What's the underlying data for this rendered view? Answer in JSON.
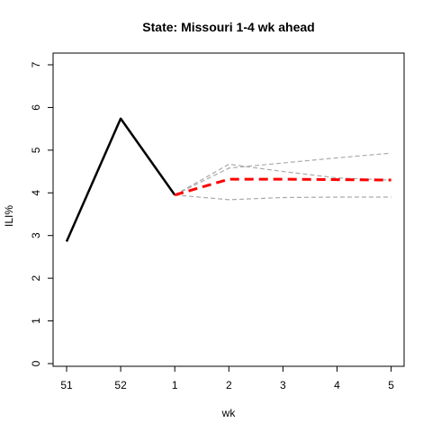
{
  "chart_data": {
    "type": "line",
    "title": "State: Missouri 1-4 wk ahead",
    "xlabel": "wk",
    "ylabel": "ILI%",
    "x_ticks": [
      "51",
      "52",
      "1",
      "2",
      "3",
      "4",
      "5"
    ],
    "y_ticks": [
      "0",
      "1",
      "2",
      "3",
      "4",
      "5",
      "6",
      "7"
    ],
    "ylim": [
      0,
      7
    ],
    "grid": false,
    "legend": "none",
    "series": [
      {
        "role": "observed",
        "color": "#000000",
        "style": "solid",
        "x": [
          "51",
          "52",
          "1"
        ],
        "values": [
          2.86,
          5.74,
          3.95
        ]
      },
      {
        "role": "forecast",
        "color": "#ff0000",
        "style": "dashed",
        "x": [
          "1",
          "2",
          "3",
          "4",
          "5"
        ],
        "values": [
          3.95,
          4.32,
          4.32,
          4.31,
          4.3
        ]
      },
      {
        "role": "bound",
        "color": "#aaaaaa",
        "style": "dashed",
        "x": [
          "1",
          "2",
          "3",
          "4",
          "5"
        ],
        "values": [
          3.95,
          4.58,
          4.7,
          4.82,
          4.93
        ]
      },
      {
        "role": "bound",
        "color": "#aaaaaa",
        "style": "dashed",
        "x": [
          "1",
          "2",
          "3",
          "4",
          "5"
        ],
        "values": [
          3.95,
          4.67,
          4.5,
          4.35,
          4.3
        ]
      },
      {
        "role": "bound",
        "color": "#aaaaaa",
        "style": "dashed",
        "x": [
          "1",
          "2",
          "3",
          "4",
          "5"
        ],
        "values": [
          3.95,
          3.84,
          3.89,
          3.9,
          3.9
        ]
      }
    ]
  }
}
